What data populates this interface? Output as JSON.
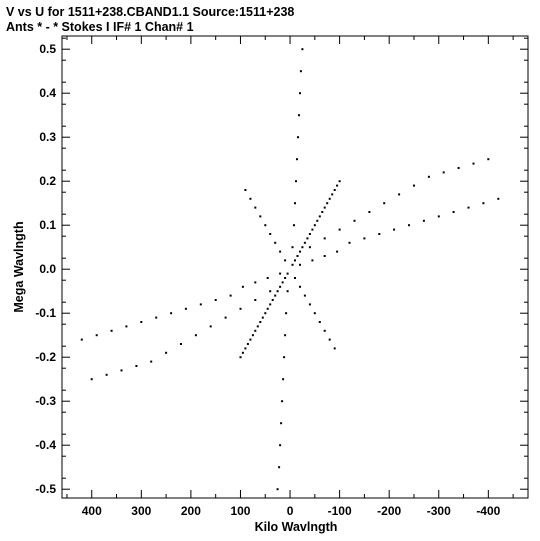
{
  "header": {
    "line1": "V vs U for 1511+238.CBAND1.1   Source:1511+238",
    "line2": "Ants * - *     Stokes I  IF# 1  Chan# 1"
  },
  "chart_data": {
    "type": "scatter",
    "title": "V vs U for 1511+238.CBAND1.1   Source:1511+238",
    "subtitle": "Ants * - *     Stokes I  IF# 1  Chan# 1",
    "xlabel": "Kilo Wavlngth",
    "ylabel": "Mega Wavlngth",
    "x_units": "kilo-wavelengths",
    "y_units": "mega-wavelengths",
    "xlim": [
      460,
      -480
    ],
    "ylim": [
      -0.52,
      0.53
    ],
    "x_direction": "decreasing to the right",
    "x_ticks": [
      400,
      300,
      200,
      100,
      0,
      -100,
      -200,
      -300,
      -400
    ],
    "x_tick_labels": [
      "400",
      "300",
      "200",
      "100",
      "0",
      "-100",
      "-200",
      "-300",
      "-400"
    ],
    "y_ticks": [
      0.5,
      0.4,
      0.3,
      0.2,
      0.1,
      0.0,
      -0.1,
      -0.2,
      -0.3,
      -0.4,
      -0.5
    ],
    "y_tick_labels": [
      "0.5",
      "0.4",
      "0.3",
      "0.2",
      "0.1",
      "0.0",
      "-0.1",
      "-0.2",
      "-0.3",
      "-0.4",
      "-0.5"
    ],
    "grid": false,
    "marker": "small black dots",
    "marker_color": "#000000",
    "series": [
      {
        "points": [
          [
            -5,
            0.01
          ],
          [
            -15,
            0.03
          ],
          [
            -25,
            0.05
          ],
          [
            -35,
            0.07
          ],
          [
            -45,
            0.09
          ],
          [
            -55,
            0.11
          ],
          [
            -65,
            0.13
          ],
          [
            -75,
            0.15
          ],
          [
            -85,
            0.17
          ],
          [
            -95,
            0.19
          ],
          [
            5,
            -0.01
          ],
          [
            15,
            -0.03
          ],
          [
            25,
            -0.05
          ],
          [
            35,
            -0.07
          ],
          [
            45,
            -0.09
          ],
          [
            55,
            -0.11
          ],
          [
            65,
            -0.13
          ],
          [
            75,
            -0.15
          ],
          [
            85,
            -0.17
          ],
          [
            95,
            -0.19
          ],
          [
            -10,
            0.02
          ],
          [
            -20,
            0.04
          ],
          [
            -30,
            0.06
          ],
          [
            -40,
            0.08
          ],
          [
            -50,
            0.1
          ],
          [
            -60,
            0.12
          ],
          [
            -70,
            0.14
          ],
          [
            -80,
            0.16
          ],
          [
            -90,
            0.18
          ],
          [
            -100,
            0.2
          ],
          [
            10,
            -0.02
          ],
          [
            20,
            -0.04
          ],
          [
            30,
            -0.06
          ],
          [
            40,
            -0.08
          ],
          [
            50,
            -0.1
          ],
          [
            60,
            -0.12
          ],
          [
            70,
            -0.14
          ],
          [
            80,
            -0.16
          ],
          [
            90,
            -0.18
          ],
          [
            100,
            -0.2
          ],
          [
            10,
            0.02
          ],
          [
            20,
            0.04
          ],
          [
            30,
            0.06
          ],
          [
            40,
            0.08
          ],
          [
            50,
            0.1
          ],
          [
            60,
            0.12
          ],
          [
            70,
            0.14
          ],
          [
            80,
            0.16
          ],
          [
            90,
            0.18
          ],
          [
            -10,
            -0.02
          ],
          [
            -20,
            -0.04
          ],
          [
            -30,
            -0.06
          ],
          [
            -40,
            -0.08
          ],
          [
            -50,
            -0.1
          ],
          [
            -60,
            -0.12
          ],
          [
            -70,
            -0.14
          ],
          [
            -80,
            -0.16
          ],
          [
            -90,
            -0.18
          ],
          [
            -5,
            0.05
          ],
          [
            -8,
            0.1
          ],
          [
            -10,
            0.15
          ],
          [
            -12,
            0.2
          ],
          [
            -14,
            0.25
          ],
          [
            -16,
            0.3
          ],
          [
            -18,
            0.35
          ],
          [
            -20,
            0.4
          ],
          [
            -22,
            0.45
          ],
          [
            -25,
            0.5
          ],
          [
            5,
            -0.05
          ],
          [
            8,
            -0.1
          ],
          [
            10,
            -0.15
          ],
          [
            12,
            -0.2
          ],
          [
            14,
            -0.25
          ],
          [
            16,
            -0.3
          ],
          [
            18,
            -0.35
          ],
          [
            20,
            -0.4
          ],
          [
            22,
            -0.45
          ],
          [
            25,
            -0.5
          ],
          [
            20,
            -0.01
          ],
          [
            45,
            -0.02
          ],
          [
            70,
            -0.03
          ],
          [
            95,
            -0.04
          ],
          [
            120,
            -0.06
          ],
          [
            150,
            -0.07
          ],
          [
            180,
            -0.08
          ],
          [
            210,
            -0.09
          ],
          [
            240,
            -0.1
          ],
          [
            270,
            -0.11
          ],
          [
            300,
            -0.12
          ],
          [
            330,
            -0.13
          ],
          [
            360,
            -0.14
          ],
          [
            390,
            -0.15
          ],
          [
            420,
            -0.16
          ],
          [
            -20,
            0.01
          ],
          [
            -45,
            0.02
          ],
          [
            -70,
            0.03
          ],
          [
            -95,
            0.04
          ],
          [
            -120,
            0.06
          ],
          [
            -150,
            0.07
          ],
          [
            -180,
            0.08
          ],
          [
            -210,
            0.09
          ],
          [
            -240,
            0.1
          ],
          [
            -270,
            0.11
          ],
          [
            -300,
            0.12
          ],
          [
            -330,
            0.13
          ],
          [
            -360,
            0.14
          ],
          [
            -390,
            0.15
          ],
          [
            -420,
            0.16
          ],
          [
            -40,
            0.05
          ],
          [
            -70,
            0.07
          ],
          [
            -100,
            0.09
          ],
          [
            -130,
            0.11
          ],
          [
            -160,
            0.13
          ],
          [
            -190,
            0.15
          ],
          [
            -220,
            0.17
          ],
          [
            -250,
            0.19
          ],
          [
            -280,
            0.21
          ],
          [
            -310,
            0.22
          ],
          [
            -340,
            0.23
          ],
          [
            -370,
            0.24
          ],
          [
            -400,
            0.25
          ],
          [
            40,
            -0.05
          ],
          [
            70,
            -0.07
          ],
          [
            100,
            -0.09
          ],
          [
            130,
            -0.11
          ],
          [
            160,
            -0.13
          ],
          [
            190,
            -0.15
          ],
          [
            220,
            -0.17
          ],
          [
            250,
            -0.19
          ],
          [
            280,
            -0.21
          ],
          [
            310,
            -0.22
          ],
          [
            340,
            -0.23
          ],
          [
            370,
            -0.24
          ],
          [
            400,
            -0.25
          ]
        ]
      }
    ]
  }
}
